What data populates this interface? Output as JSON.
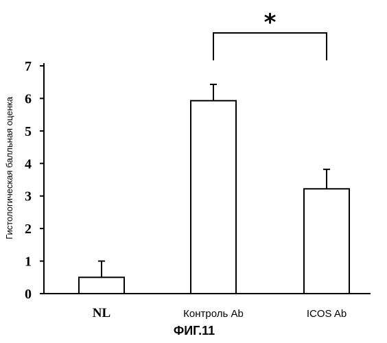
{
  "chart_data": {
    "type": "bar",
    "categories": [
      "NL",
      "Контроль Ab",
      "ICOS Ab"
    ],
    "values": [
      0.5,
      5.93,
      3.22
    ],
    "errors": [
      0.5,
      0.5,
      0.6
    ],
    "ylabel": "Гистологическая балльная оценка",
    "xlabel": "",
    "ylim": [
      0,
      7
    ],
    "yticks": [
      "0",
      "1",
      "2",
      "3",
      "4",
      "5",
      "6",
      "7"
    ],
    "caption": "ФИГ.11",
    "significance": {
      "marker": "*",
      "between": [
        "Контроль Ab",
        "ICOS Ab"
      ]
    },
    "grid": false,
    "bar_fill": "#ffffff",
    "bar_stroke": "#000000"
  }
}
